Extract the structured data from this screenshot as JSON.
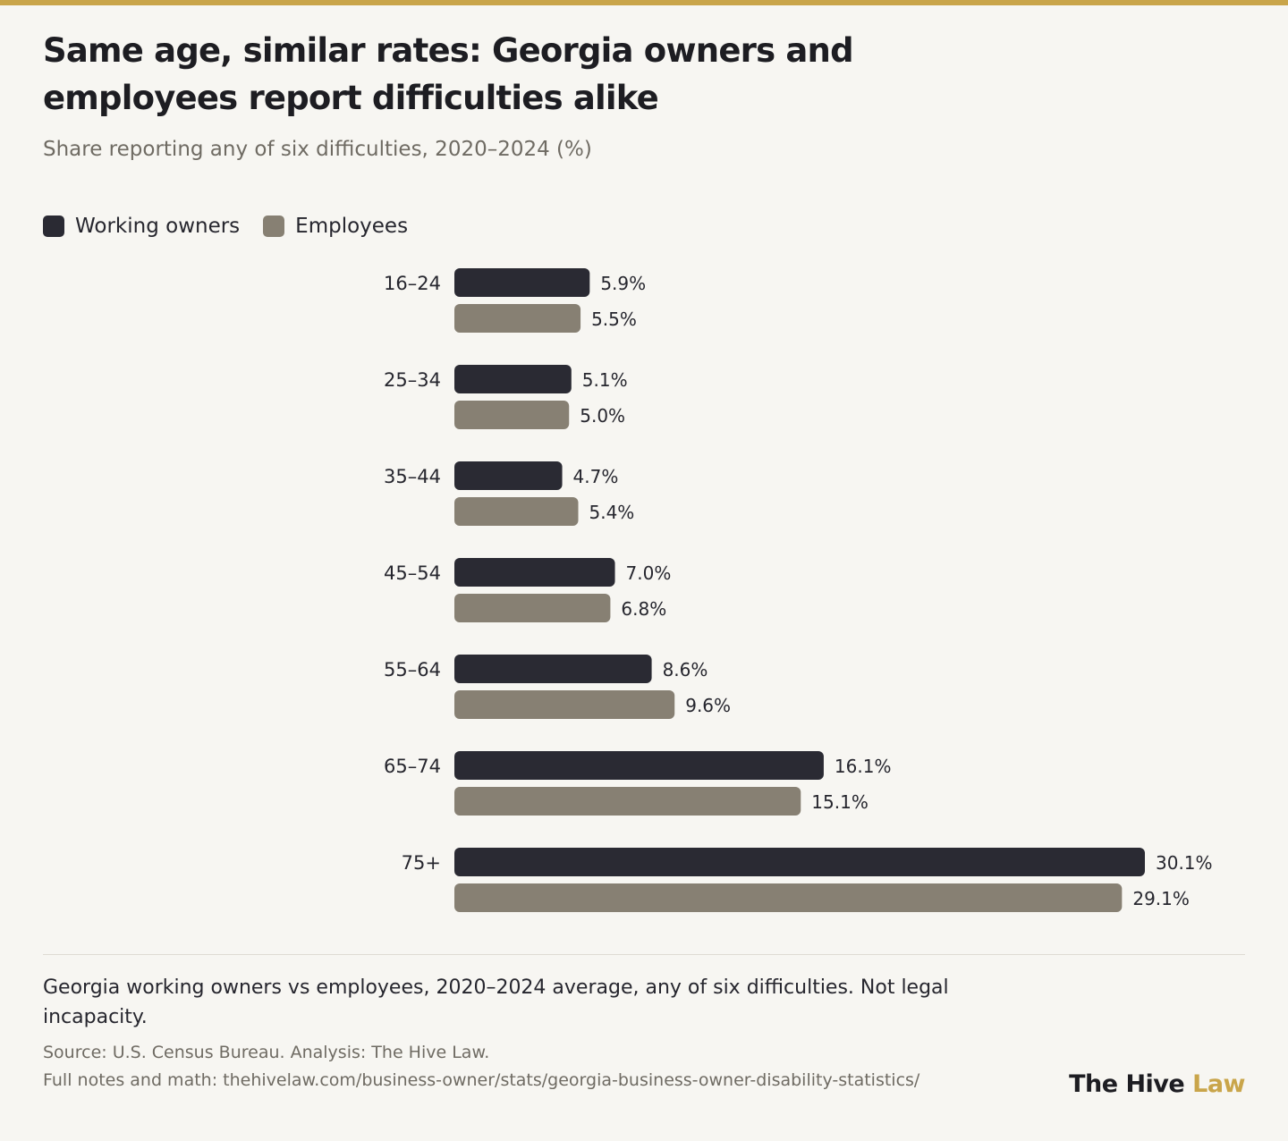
{
  "title": "Same age, similar rates: Georgia owners and employees report difficulties alike",
  "subtitle": "Share reporting any of six difficulties, 2020–2024 (%)",
  "legend": [
    {
      "label": "Working owners",
      "color": "#2a2a33"
    },
    {
      "label": "Employees",
      "color": "#878073"
    }
  ],
  "chart_data": {
    "type": "bar",
    "orientation": "horizontal",
    "categories": [
      "16–24",
      "25–34",
      "35–44",
      "45–54",
      "55–64",
      "65–74",
      "75+"
    ],
    "series": [
      {
        "name": "Working owners",
        "color": "#2a2a33",
        "values": [
          5.9,
          5.1,
          4.7,
          7.0,
          8.6,
          16.1,
          30.1
        ],
        "labels": [
          "5.9%",
          "5.1%",
          "4.7%",
          "7.0%",
          "8.6%",
          "16.1%",
          "30.1%"
        ]
      },
      {
        "name": "Employees",
        "color": "#878073",
        "values": [
          5.5,
          5.0,
          5.4,
          6.8,
          9.6,
          15.1,
          29.1
        ],
        "labels": [
          "5.5%",
          "5.0%",
          "5.4%",
          "6.8%",
          "9.6%",
          "15.1%",
          "29.1%"
        ]
      }
    ],
    "xlim": [
      0,
      30.1
    ],
    "grid": false,
    "legend_position": "top-left"
  },
  "footer": {
    "note": "Georgia working owners vs employees, 2020–2024 average, any of six difficulties. Not legal incapacity.",
    "source": "Source: U.S. Census Bureau. Analysis: The Hive Law.",
    "notes_link": "Full notes and math: thehivelaw.com/business-owner/stats/georgia-business-owner-disability-statistics/"
  },
  "brand": {
    "name_part1": "The Hive",
    "name_part2": "Law"
  }
}
